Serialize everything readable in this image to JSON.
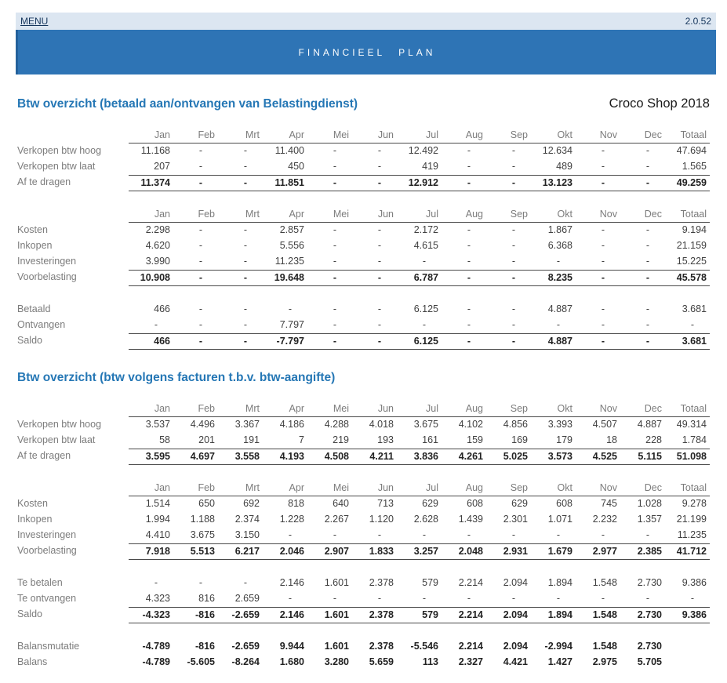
{
  "topbar": {
    "menu": "MENU",
    "version": "2.0.52"
  },
  "banner": {
    "title": "FINANCIEEL PLAN"
  },
  "months": [
    "Jan",
    "Feb",
    "Mrt",
    "Apr",
    "Mei",
    "Jun",
    "Jul",
    "Aug",
    "Sep",
    "Okt",
    "Nov",
    "Dec",
    "Totaal"
  ],
  "sections": [
    {
      "heading": "Btw overzicht (betaald aan/ontvangen van Belastingdienst)",
      "company": "Croco Shop 2018",
      "blocks": [
        {
          "show_months": true,
          "rows": [
            {
              "label": "Verkopen btw hoog",
              "bold": false,
              "rule_above": false,
              "rule_below": false,
              "values": [
                "11.168",
                "-",
                "-",
                "11.400",
                "-",
                "-",
                "12.492",
                "-",
                "-",
                "12.634",
                "-",
                "-",
                "47.694"
              ]
            },
            {
              "label": "Verkopen btw laat",
              "bold": false,
              "rule_above": false,
              "rule_below": false,
              "values": [
                "207",
                "-",
                "-",
                "450",
                "-",
                "-",
                "419",
                "-",
                "-",
                "489",
                "-",
                "-",
                "1.565"
              ]
            },
            {
              "label": "Af te dragen",
              "bold": true,
              "rule_above": true,
              "rule_below": true,
              "values": [
                "11.374",
                "-",
                "-",
                "11.851",
                "-",
                "-",
                "12.912",
                "-",
                "-",
                "13.123",
                "-",
                "-",
                "49.259"
              ]
            }
          ]
        },
        {
          "show_months": true,
          "rows": [
            {
              "label": "Kosten",
              "bold": false,
              "rule_above": false,
              "rule_below": false,
              "values": [
                "2.298",
                "-",
                "-",
                "2.857",
                "-",
                "-",
                "2.172",
                "-",
                "-",
                "1.867",
                "-",
                "-",
                "9.194"
              ]
            },
            {
              "label": "Inkopen",
              "bold": false,
              "rule_above": false,
              "rule_below": false,
              "values": [
                "4.620",
                "-",
                "-",
                "5.556",
                "-",
                "-",
                "4.615",
                "-",
                "-",
                "6.368",
                "-",
                "-",
                "21.159"
              ]
            },
            {
              "label": "Investeringen",
              "bold": false,
              "rule_above": false,
              "rule_below": false,
              "values": [
                "3.990",
                "-",
                "-",
                "11.235",
                "-",
                "-",
                "-",
                "-",
                "-",
                "-",
                "-",
                "-",
                "15.225"
              ]
            },
            {
              "label": "Voorbelasting",
              "bold": true,
              "rule_above": true,
              "rule_below": true,
              "values": [
                "10.908",
                "-",
                "-",
                "19.648",
                "-",
                "-",
                "6.787",
                "-",
                "-",
                "8.235",
                "-",
                "-",
                "45.578"
              ]
            }
          ]
        },
        {
          "show_months": false,
          "rows": [
            {
              "label": "Betaald",
              "bold": false,
              "rule_above": false,
              "rule_below": false,
              "values": [
                "466",
                "-",
                "-",
                "-",
                "-",
                "-",
                "6.125",
                "-",
                "-",
                "4.887",
                "-",
                "-",
                "3.681"
              ]
            },
            {
              "label": "Ontvangen",
              "bold": false,
              "rule_above": false,
              "rule_below": false,
              "values": [
                "-",
                "-",
                "-",
                "7.797",
                "-",
                "-",
                "-",
                "-",
                "-",
                "-",
                "-",
                "-",
                "-"
              ]
            },
            {
              "label": "Saldo",
              "bold": true,
              "rule_above": true,
              "rule_below": true,
              "values": [
                "466",
                "-",
                "-",
                "-7.797",
                "-",
                "-",
                "6.125",
                "-",
                "-",
                "4.887",
                "-",
                "-",
                "3.681"
              ]
            }
          ]
        }
      ]
    },
    {
      "heading": "Btw overzicht (btw volgens facturen t.b.v. btw-aangifte)",
      "company": null,
      "blocks": [
        {
          "show_months": true,
          "rows": [
            {
              "label": "Verkopen btw hoog",
              "bold": false,
              "rule_above": false,
              "rule_below": false,
              "values": [
                "3.537",
                "4.496",
                "3.367",
                "4.186",
                "4.288",
                "4.018",
                "3.675",
                "4.102",
                "4.856",
                "3.393",
                "4.507",
                "4.887",
                "49.314"
              ]
            },
            {
              "label": "Verkopen btw laat",
              "bold": false,
              "rule_above": false,
              "rule_below": false,
              "values": [
                "58",
                "201",
                "191",
                "7",
                "219",
                "193",
                "161",
                "159",
                "169",
                "179",
                "18",
                "228",
                "1.784"
              ]
            },
            {
              "label": "Af te dragen",
              "bold": true,
              "rule_above": true,
              "rule_below": true,
              "values": [
                "3.595",
                "4.697",
                "3.558",
                "4.193",
                "4.508",
                "4.211",
                "3.836",
                "4.261",
                "5.025",
                "3.573",
                "4.525",
                "5.115",
                "51.098"
              ]
            }
          ]
        },
        {
          "show_months": true,
          "rows": [
            {
              "label": "Kosten",
              "bold": false,
              "rule_above": false,
              "rule_below": false,
              "values": [
                "1.514",
                "650",
                "692",
                "818",
                "640",
                "713",
                "629",
                "608",
                "629",
                "608",
                "745",
                "1.028",
                "9.278"
              ]
            },
            {
              "label": "Inkopen",
              "bold": false,
              "rule_above": false,
              "rule_below": false,
              "values": [
                "1.994",
                "1.188",
                "2.374",
                "1.228",
                "2.267",
                "1.120",
                "2.628",
                "1.439",
                "2.301",
                "1.071",
                "2.232",
                "1.357",
                "21.199"
              ]
            },
            {
              "label": "Investeringen",
              "bold": false,
              "rule_above": false,
              "rule_below": false,
              "values": [
                "4.410",
                "3.675",
                "3.150",
                "-",
                "-",
                "-",
                "-",
                "-",
                "-",
                "-",
                "-",
                "-",
                "11.235"
              ]
            },
            {
              "label": "Voorbelasting",
              "bold": true,
              "rule_above": true,
              "rule_below": true,
              "values": [
                "7.918",
                "5.513",
                "6.217",
                "2.046",
                "2.907",
                "1.833",
                "3.257",
                "2.048",
                "2.931",
                "1.679",
                "2.977",
                "2.385",
                "41.712"
              ]
            }
          ]
        },
        {
          "show_months": false,
          "rows": [
            {
              "label": "Te betalen",
              "bold": false,
              "rule_above": false,
              "rule_below": false,
              "values": [
                "-",
                "-",
                "-",
                "2.146",
                "1.601",
                "2.378",
                "579",
                "2.214",
                "2.094",
                "1.894",
                "1.548",
                "2.730",
                "9.386"
              ]
            },
            {
              "label": "Te ontvangen",
              "bold": false,
              "rule_above": false,
              "rule_below": false,
              "values": [
                "4.323",
                "816",
                "2.659",
                "-",
                "-",
                "-",
                "-",
                "-",
                "-",
                "-",
                "-",
                "-",
                "-"
              ]
            },
            {
              "label": "Saldo",
              "bold": true,
              "rule_above": true,
              "rule_below": true,
              "values": [
                "-4.323",
                "-816",
                "-2.659",
                "2.146",
                "1.601",
                "2.378",
                "579",
                "2.214",
                "2.094",
                "1.894",
                "1.548",
                "2.730",
                "9.386"
              ]
            }
          ]
        },
        {
          "show_months": false,
          "rows": [
            {
              "label": "Balansmutatie",
              "bold": true,
              "rule_above": false,
              "rule_below": false,
              "values": [
                "-4.789",
                "-816",
                "-2.659",
                "9.944",
                "1.601",
                "2.378",
                "-5.546",
                "2.214",
                "2.094",
                "-2.994",
                "1.548",
                "2.730",
                ""
              ]
            },
            {
              "label": "Balans",
              "bold": true,
              "rule_above": false,
              "rule_below": false,
              "values": [
                "-4.789",
                "-5.605",
                "-8.264",
                "1.680",
                "3.280",
                "5.659",
                "113",
                "2.327",
                "4.421",
                "1.427",
                "2.975",
                "5.705",
                ""
              ]
            }
          ]
        }
      ]
    }
  ]
}
